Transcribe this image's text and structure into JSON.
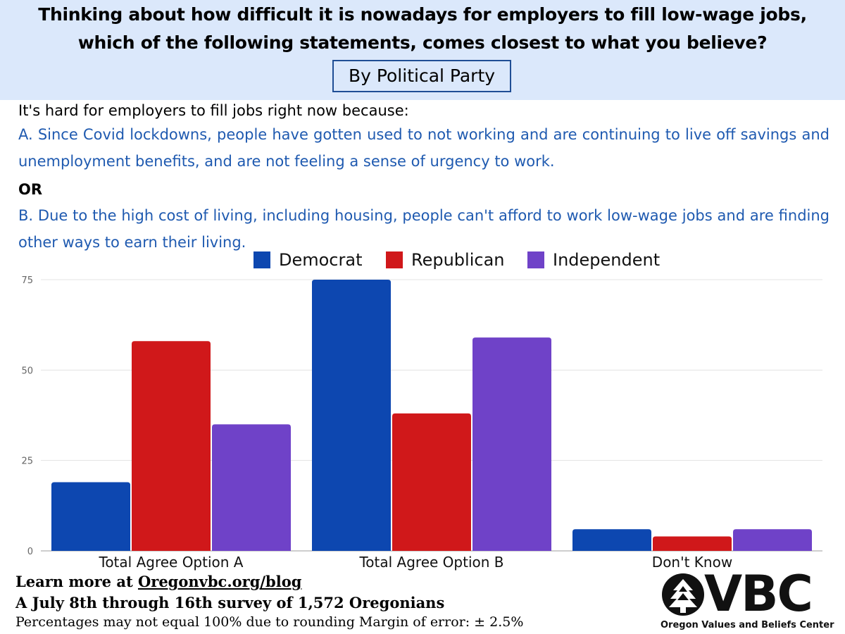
{
  "header": {
    "title_line1": "Thinking about how difficult it is nowadays for employers to fill low-wage jobs,",
    "title_line2": "which of the following statements, comes closest to what you believe?",
    "subtitle": "By Political Party"
  },
  "question": {
    "intro": "It's hard for employers to fill jobs right now because:",
    "option_a": "A. Since Covid lockdowns, people have gotten used to not working and are continuing to live off savings and unemployment benefits, and are not feeling a sense of urgency to work.",
    "or": "OR",
    "option_b": "B. Due to the high cost of living, including housing, people can't afford to work low-wage jobs and are finding other ways to earn their living."
  },
  "chart_data": {
    "type": "bar",
    "categories": [
      "Total Agree Option A",
      "Total Agree Option B",
      "Don't Know"
    ],
    "series": [
      {
        "name": "Democrat",
        "color": "#0d47b0",
        "values": [
          19,
          75,
          6
        ]
      },
      {
        "name": "Republican",
        "color": "#d0181a",
        "values": [
          58,
          38,
          4
        ]
      },
      {
        "name": "Independent",
        "color": "#6f42c8",
        "values": [
          35,
          59,
          6
        ]
      }
    ],
    "yticks": [
      "0",
      "25",
      "50",
      "75"
    ],
    "ylim": [
      0,
      75
    ],
    "grid": true,
    "legend_position": "top"
  },
  "footer": {
    "learn_prefix": "Learn more at ",
    "learn_link": "Oregonvbc.org/blog",
    "survey": "A July 8th through 16th survey of 1,572 Oregonians",
    "note": "Percentages may not equal  100% due to rounding Margin of error: ± 2.5%"
  },
  "logo": {
    "letters": "VBC",
    "caption": "Oregon Values and Beliefs Center",
    "icon": "tree-circle-icon"
  }
}
